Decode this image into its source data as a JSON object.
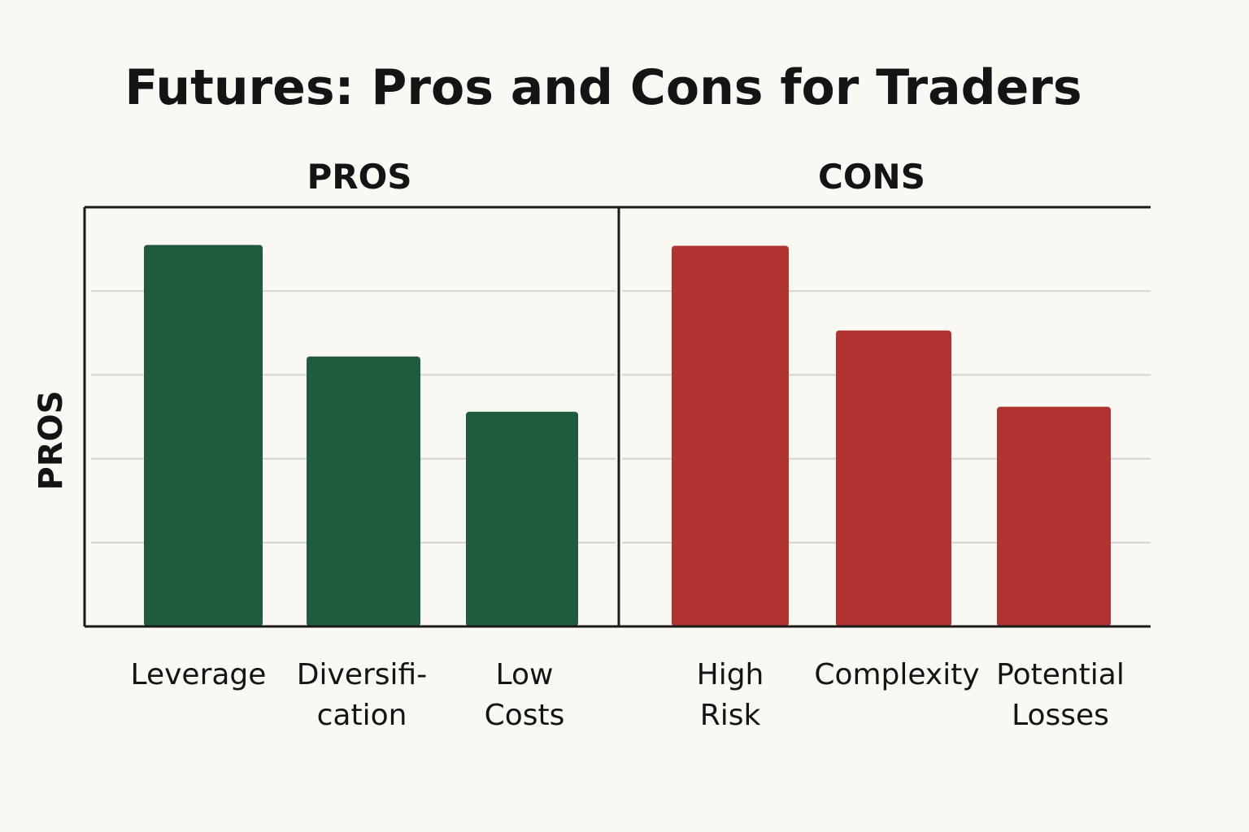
{
  "chart_data": {
    "type": "bar",
    "title": "Futures: Pros and Cons for Traders",
    "ylabel": "PROS",
    "ylim": [
      0,
      5
    ],
    "grid": true,
    "panels": [
      {
        "name": "PROS",
        "color": "#1f5c3d",
        "categories": [
          [
            "Leverage"
          ],
          [
            "Diversifi-",
            "cation"
          ],
          [
            "Low",
            "Costs"
          ]
        ],
        "values": [
          4.55,
          3.22,
          2.56
        ]
      },
      {
        "name": "CONS",
        "color": "#b03330",
        "categories": [
          [
            "High",
            "Risk"
          ],
          [
            "Complexity"
          ],
          [
            "Potential",
            "Losses"
          ]
        ],
        "values": [
          4.54,
          3.53,
          2.62
        ]
      }
    ]
  }
}
